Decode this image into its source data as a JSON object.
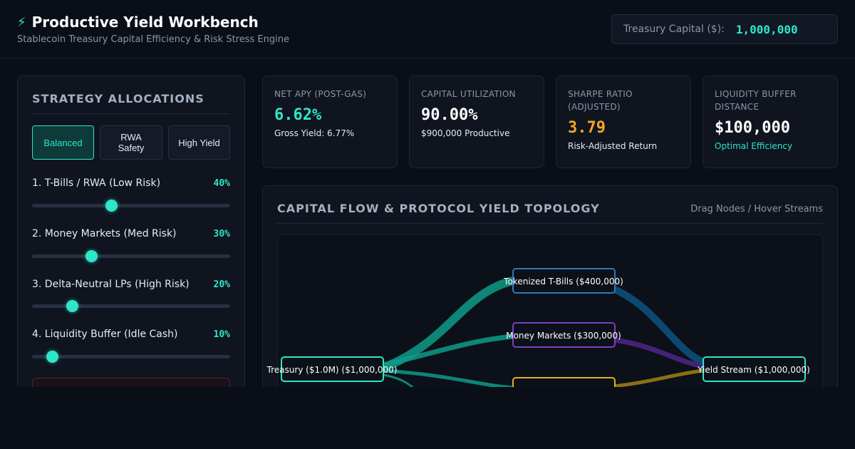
{
  "header": {
    "title": "Productive Yield Workbench",
    "subtitle": "Stablecoin Treasury Capital Efficiency & Risk Stress Engine",
    "capital_label": "Treasury Capital ($):",
    "capital_value": "1,000,000"
  },
  "strategy": {
    "title": "STRATEGY ALLOCATIONS",
    "presets": [
      {
        "label": "Balanced",
        "active": true
      },
      {
        "label": "RWA Safety",
        "active": false
      },
      {
        "label": "High Yield",
        "active": false
      }
    ],
    "allocations": [
      {
        "label": "1. T-Bills / RWA (Low Risk)",
        "pct": "40%",
        "value": 40
      },
      {
        "label": "2. Money Markets (Med Risk)",
        "pct": "30%",
        "value": 30
      },
      {
        "label": "3. Delta-Neutral LPs (High Risk)",
        "pct": "20%",
        "value": 20
      },
      {
        "label": "4. Liquidity Buffer (Idle Cash)",
        "pct": "10%",
        "value": 10
      }
    ]
  },
  "metrics": [
    {
      "label": "NET APY (POST-GAS)",
      "value": "6.62%",
      "sub": "Gross Yield: 6.77%",
      "value_color": "#2ee6c8",
      "sub_color": "#e6edf3"
    },
    {
      "label": "CAPITAL UTILIZATION",
      "value": "90.00%",
      "sub": "$900,000 Productive",
      "value_color": "#ffffff",
      "sub_color": "#e6edf3"
    },
    {
      "label": "SHARPE RATIO (ADJUSTED)",
      "value": "3.79",
      "sub": "Risk-Adjusted Return",
      "value_color": "#f5a623",
      "sub_color": "#e6edf3"
    },
    {
      "label": "LIQUIDITY BUFFER DISTANCE",
      "value": "$100,000",
      "sub": "Optimal Efficiency",
      "value_color": "#ffffff",
      "sub_color": "#2ee6c8"
    }
  ],
  "flow": {
    "title": "CAPITAL FLOW & PROTOCOL YIELD TOPOLOGY",
    "hint": "Drag Nodes / Hover Streams",
    "nodes": {
      "treasury": "Treasury ($1.0M) ($1,000,000)",
      "tbills": "Tokenized T-Bills ($400,000)",
      "money_markets": "Money Markets ($300,000)",
      "yield": "Yield Stream ($1,000,000)"
    },
    "colors": {
      "teal": "#0e9a88",
      "blue": "#0d4f7a",
      "purple": "#4a2585",
      "gold": "#9a7b17",
      "node_teal": "#2ee6c8",
      "node_blue": "#2f7ab8",
      "node_purple": "#7b3fc4",
      "node_gold": "#e3b021"
    }
  }
}
